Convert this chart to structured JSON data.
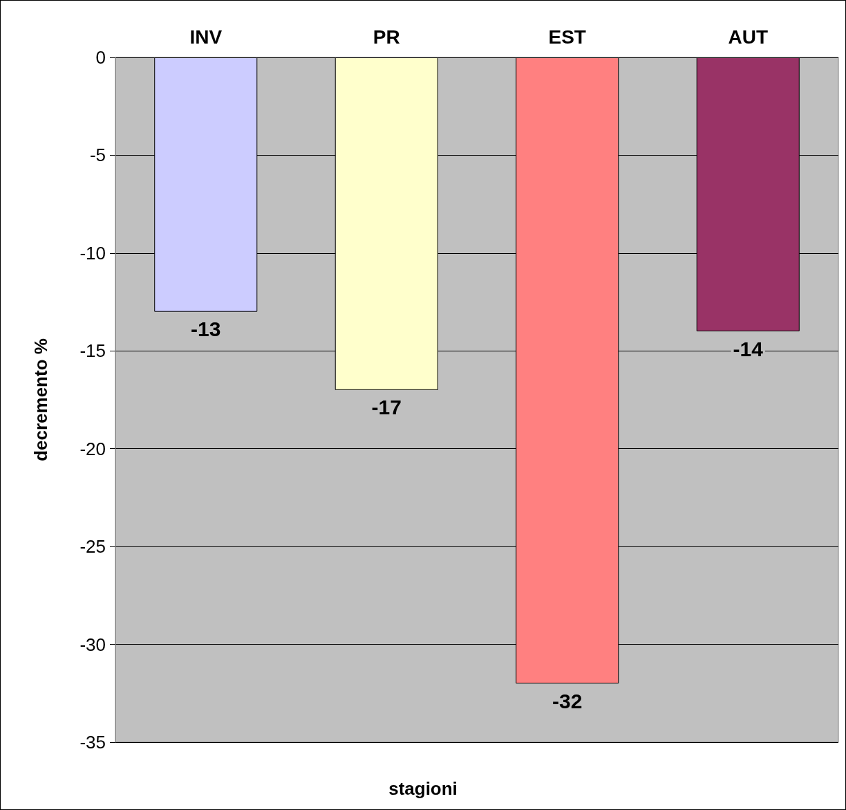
{
  "chart_data": {
    "type": "bar",
    "xlabel": "stagioni",
    "ylabel": "decremento %",
    "categories": [
      "INV",
      "PR",
      "EST",
      "AUT"
    ],
    "values": [
      -13,
      -17,
      -32,
      -14
    ],
    "colors": [
      "#ccccff",
      "#ffffcc",
      "#ff8080",
      "#993366"
    ],
    "ylim": [
      -35,
      0
    ],
    "yticks": [
      -35,
      -30,
      -25,
      -20,
      -15,
      -10,
      -5,
      0
    ],
    "grid": "y",
    "data_labels": true
  }
}
